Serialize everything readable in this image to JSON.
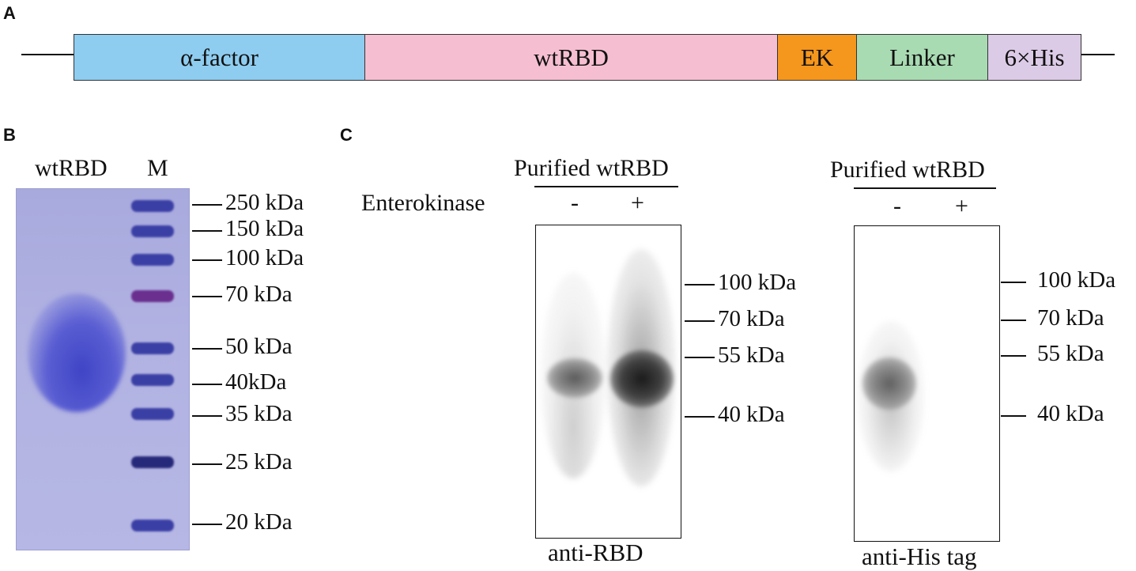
{
  "panels": {
    "a": "A",
    "b": "B",
    "c": "C"
  },
  "construct": {
    "segments": [
      {
        "label": "α-factor",
        "color": "#8ecdf0"
      },
      {
        "label": "wtRBD",
        "color": "#f6bfd1"
      },
      {
        "label": "EK",
        "color": "#f5961d"
      },
      {
        "label": "Linker",
        "color": "#a9dbb3"
      },
      {
        "label": "6×His",
        "color": "#dccbe6"
      }
    ]
  },
  "gel_b": {
    "lanes": [
      "wtRBD",
      "M"
    ],
    "markers": [
      "250 kDa",
      "150 kDa",
      "100 kDa",
      "70 kDa",
      "50 kDa",
      "40kDa",
      "35 kDa",
      "25 kDa",
      "20 kDa"
    ]
  },
  "blot_rbd": {
    "header": "Purified wtRBD",
    "treatment_label": "Enterokinase",
    "lane_minus": "-",
    "lane_plus": "+",
    "markers": [
      "100 kDa",
      "70 kDa",
      "55 kDa",
      "40 kDa"
    ],
    "caption": "anti-RBD"
  },
  "blot_his": {
    "header": "Purified wtRBD",
    "lane_minus": "-",
    "lane_plus": "+",
    "markers": [
      "100 kDa",
      "70 kDa",
      "55 kDa",
      "40 kDa"
    ],
    "caption": "anti-His tag"
  }
}
